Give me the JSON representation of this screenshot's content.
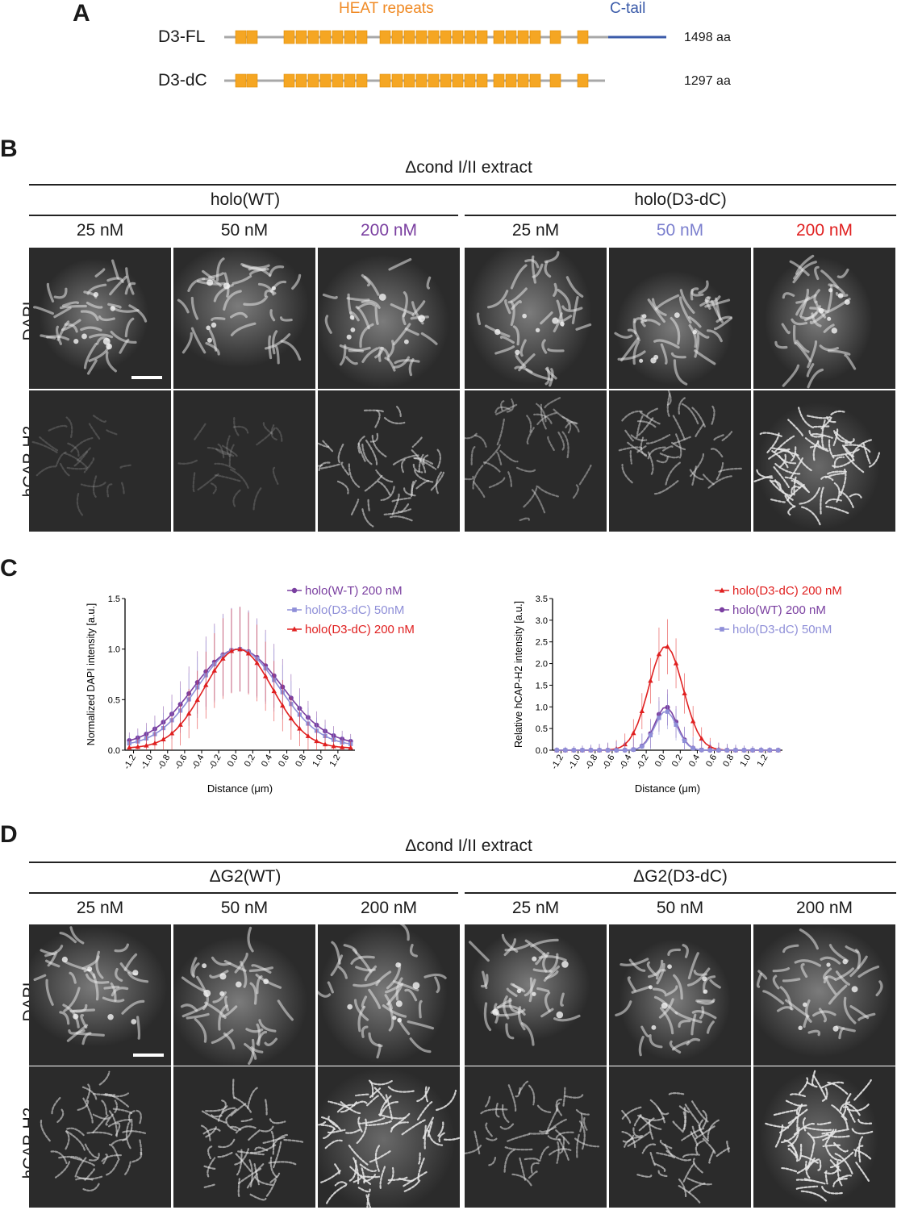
{
  "panel_a": {
    "letter": "A",
    "heat_label": "HEAT repeats",
    "ctail_label": "C-tail",
    "heat_color": "#f5a623",
    "ctail_color": "#3b5ba9",
    "constructs": [
      {
        "name": "D3-FL",
        "length": "1498 aa"
      },
      {
        "name": "D3-dC",
        "length": "1297 aa"
      }
    ]
  },
  "panel_b": {
    "letter": "B",
    "extract": "Δcond I/II extract",
    "groups": [
      "holo(WT)",
      "holo(D3-dC)"
    ],
    "concentrations": [
      "25 nM",
      "50 nM",
      "200 nM",
      "25 nM",
      "50 nM",
      "200 nM"
    ],
    "conc_colors": [
      "#1a1a1a",
      "#1a1a1a",
      "#7a3fa0",
      "#1a1a1a",
      "#7b7fce",
      "#e02020"
    ],
    "rows": [
      "DAPI",
      "hCAP-H2"
    ]
  },
  "panel_c": {
    "letter": "C"
  },
  "panel_d": {
    "letter": "D",
    "extract": "Δcond I/II extract",
    "groups": [
      "ΔG2(WT)",
      "ΔG2(D3-dC)"
    ],
    "concentrations": [
      "25 nM",
      "50 nM",
      "200 nM",
      "25 nM",
      "50 nM",
      "200 nM"
    ],
    "rows": [
      "DAPI",
      "hCAP-H2"
    ]
  },
  "chart_data": [
    {
      "type": "line",
      "xlabel": "Distance (μm)",
      "ylabel": "Normalized DAPI intensity [a.u.]",
      "xlim": [
        -1.3,
        1.4
      ],
      "ylim": [
        0,
        1.5
      ],
      "x_ticks": [
        "-1.2",
        "-1.0",
        "-0.8",
        "-0.6",
        "-0.4",
        "-0.2",
        "0.0",
        "0.2",
        "0.4",
        "0.6",
        "0.8",
        "1.0",
        "1.2"
      ],
      "y_ticks": [
        "0.0",
        "0.5",
        "1.0",
        "1.5"
      ],
      "legend_position": "top-right",
      "series": [
        {
          "name": "holo(W-T) 200 nM",
          "color": "#7a3fa0",
          "marker": "circle",
          "peak": 1.0,
          "sigma": 0.52,
          "base": 0.05
        },
        {
          "name": "holo(D3-dC) 50nM",
          "color": "#8f8fd8",
          "marker": "square",
          "peak": 1.0,
          "sigma": 0.48,
          "base": 0.04
        },
        {
          "name": "holo(D3-dC) 200 nM",
          "color": "#e02020",
          "marker": "triangle",
          "peak": 1.0,
          "sigma": 0.4,
          "base": 0.02
        }
      ]
    },
    {
      "type": "line",
      "xlabel": "Distance (μm)",
      "ylabel": "Relative hCAP-H2 intensity [a.u.]",
      "xlim": [
        -1.3,
        1.4
      ],
      "ylim": [
        0,
        3.5
      ],
      "x_ticks": [
        "-1.2",
        "-1.0",
        "-0.8",
        "-0.6",
        "-0.4",
        "-0.2",
        "0.0",
        "0.2",
        "0.4",
        "0.6",
        "0.8",
        "1.0",
        "1.2"
      ],
      "y_ticks": [
        "0.0",
        "0.5",
        "1.0",
        "1.5",
        "2.0",
        "2.5",
        "3.0",
        "3.5"
      ],
      "legend_position": "top-right",
      "series": [
        {
          "name": "holo(D3-dC) 200 nM",
          "color": "#e02020",
          "marker": "triangle",
          "peak": 2.4,
          "sigma": 0.2,
          "base": 0.0
        },
        {
          "name": "holo(WT) 200 nM",
          "color": "#7a3fa0",
          "marker": "circle",
          "peak": 1.0,
          "sigma": 0.13,
          "base": 0.0
        },
        {
          "name": "holo(D3-dC) 50nM",
          "color": "#8f8fd8",
          "marker": "square",
          "peak": 0.9,
          "sigma": 0.13,
          "base": 0.0
        }
      ]
    }
  ]
}
